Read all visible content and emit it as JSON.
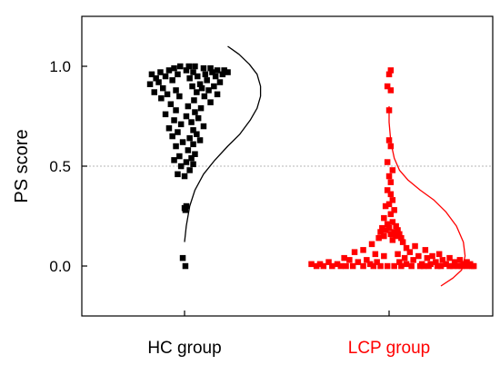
{
  "chart_data": {
    "type": "scatter",
    "title": "",
    "xlabel": "",
    "ylabel": "PS score",
    "ylim": [
      -0.25,
      1.25
    ],
    "yticks": [
      0.0,
      0.5,
      1.0
    ],
    "ytick_labels": [
      "0.0",
      "0.5",
      "1.0"
    ],
    "reference_line": 0.5,
    "grid": false,
    "legend": "none",
    "categories": [
      "HC group",
      "LCP group"
    ],
    "series": [
      {
        "color": "#000000",
        "marker": "square",
        "category": "HC group",
        "values": [
          1.0,
          1.0,
          1.0,
          0.99,
          0.99,
          0.99,
          0.98,
          0.98,
          0.98,
          0.98,
          0.97,
          0.97,
          0.97,
          0.97,
          0.96,
          0.96,
          0.96,
          0.96,
          0.95,
          0.95,
          0.95,
          0.94,
          0.94,
          0.93,
          0.93,
          0.92,
          0.92,
          0.91,
          0.91,
          0.9,
          0.9,
          0.89,
          0.89,
          0.88,
          0.88,
          0.87,
          0.87,
          0.86,
          0.86,
          0.85,
          0.85,
          0.84,
          0.83,
          0.82,
          0.81,
          0.8,
          0.79,
          0.78,
          0.77,
          0.76,
          0.75,
          0.74,
          0.73,
          0.72,
          0.71,
          0.7,
          0.69,
          0.68,
          0.67,
          0.66,
          0.65,
          0.64,
          0.63,
          0.62,
          0.61,
          0.6,
          0.58,
          0.56,
          0.55,
          0.54,
          0.53,
          0.52,
          0.51,
          0.5,
          0.48,
          0.46,
          0.45,
          0.3,
          0.29,
          0.28,
          0.04,
          0.0
        ],
        "offsets": [
          0.05,
          -0.05,
          0.12,
          0.22,
          -0.12,
          0.3,
          0.02,
          0.38,
          -0.18,
          0.46,
          -0.28,
          0.1,
          0.5,
          0.32,
          -0.38,
          0.24,
          -0.08,
          0.44,
          -0.22,
          0.15,
          0.36,
          -0.33,
          0.06,
          0.26,
          -0.14,
          0.41,
          -0.3,
          0.18,
          -0.4,
          0.09,
          0.34,
          -0.25,
          0.2,
          -0.1,
          0.28,
          -0.35,
          0.14,
          -0.2,
          0.38,
          -0.06,
          0.23,
          -0.27,
          0.11,
          0.3,
          -0.16,
          0.04,
          0.19,
          -0.1,
          0.12,
          -0.22,
          0.02,
          0.16,
          -0.12,
          0.08,
          -0.04,
          0.22,
          -0.18,
          0.1,
          -0.08,
          0.14,
          -0.14,
          0.06,
          0.18,
          -0.02,
          0.1,
          -0.1,
          0.04,
          0.12,
          -0.06,
          0.08,
          -0.12,
          0.02,
          0.1,
          -0.04,
          0.06,
          -0.08,
          0.0,
          0.02,
          0.0,
          0.01,
          -0.02,
          0.01
        ]
      },
      {
        "color": "#ff0000",
        "marker": "square",
        "category": "LCP group",
        "values": [
          0.98,
          0.96,
          0.9,
          0.88,
          0.78,
          0.63,
          0.6,
          0.52,
          0.48,
          0.45,
          0.42,
          0.38,
          0.36,
          0.33,
          0.31,
          0.3,
          0.28,
          0.26,
          0.24,
          0.22,
          0.21,
          0.2,
          0.19,
          0.19,
          0.18,
          0.18,
          0.17,
          0.17,
          0.16,
          0.16,
          0.15,
          0.15,
          0.14,
          0.14,
          0.13,
          0.12,
          0.11,
          0.1,
          0.09,
          0.08,
          0.08,
          0.07,
          0.07,
          0.06,
          0.06,
          0.06,
          0.05,
          0.05,
          0.05,
          0.04,
          0.04,
          0.04,
          0.04,
          0.03,
          0.03,
          0.03,
          0.03,
          0.03,
          0.02,
          0.02,
          0.02,
          0.02,
          0.02,
          0.02,
          0.02,
          0.01,
          0.01,
          0.01,
          0.01,
          0.01,
          0.01,
          0.01,
          0.01,
          0.01,
          0.01,
          0.0,
          0.0,
          0.0,
          0.0,
          0.0,
          0.0,
          0.0,
          0.0,
          0.0,
          0.0,
          0.0,
          0.0,
          0.0,
          0.0,
          0.0,
          0.0,
          0.0,
          0.0,
          0.0,
          0.0,
          0.0,
          0.0,
          0.0,
          0.0,
          0.0
        ],
        "offsets": [
          0.02,
          0.0,
          -0.02,
          0.02,
          0.0,
          0.0,
          0.02,
          -0.02,
          0.04,
          0.0,
          0.02,
          -0.02,
          0.02,
          0.04,
          0.0,
          -0.04,
          0.06,
          0.02,
          -0.06,
          0.04,
          -0.02,
          0.08,
          -0.08,
          0.0,
          0.1,
          -0.04,
          0.06,
          -0.1,
          0.12,
          0.02,
          -0.06,
          0.08,
          0.14,
          -0.12,
          0.04,
          0.16,
          -0.2,
          0.3,
          0.2,
          -0.3,
          0.42,
          0.24,
          -0.4,
          0.58,
          0.1,
          -0.16,
          0.5,
          0.34,
          -0.06,
          0.7,
          -0.52,
          0.18,
          0.44,
          -0.26,
          0.82,
          0.28,
          -0.46,
          0.62,
          -0.7,
          0.12,
          0.9,
          -0.36,
          0.54,
          -0.14,
          0.76,
          0.38,
          -0.6,
          0.94,
          -0.22,
          0.66,
          -0.8,
          0.48,
          0.2,
          -0.9,
          0.86,
          -0.1,
          0.56,
          -0.3,
          0.74,
          -0.5,
          0.36,
          0.98,
          -0.66,
          0.6,
          -0.02,
          0.8,
          -0.42,
          0.26,
          0.96,
          -0.76,
          0.46,
          -0.18,
          0.9,
          0.14,
          -0.56,
          0.7,
          0.4,
          -0.84,
          0.84,
          0.06
        ]
      }
    ],
    "curves": [
      {
        "color": "#000000",
        "category": "HC group",
        "points": [
          [
            0.0,
            0.12
          ],
          [
            0.02,
            0.2
          ],
          [
            0.06,
            0.3
          ],
          [
            0.12,
            0.38
          ],
          [
            0.22,
            0.46
          ],
          [
            0.35,
            0.53
          ],
          [
            0.5,
            0.6
          ],
          [
            0.64,
            0.66
          ],
          [
            0.76,
            0.73
          ],
          [
            0.84,
            0.79
          ],
          [
            0.88,
            0.85
          ],
          [
            0.88,
            0.9
          ],
          [
            0.84,
            0.96
          ],
          [
            0.75,
            1.01
          ],
          [
            0.63,
            1.06
          ],
          [
            0.5,
            1.1
          ]
        ]
      },
      {
        "color": "#ff0000",
        "category": "LCP group",
        "points": [
          [
            0.0,
            0.8
          ],
          [
            0.0,
            0.72
          ],
          [
            0.02,
            0.62
          ],
          [
            0.06,
            0.54
          ],
          [
            0.12,
            0.48
          ],
          [
            0.22,
            0.43
          ],
          [
            0.36,
            0.38
          ],
          [
            0.52,
            0.33
          ],
          [
            0.66,
            0.27
          ],
          [
            0.78,
            0.2
          ],
          [
            0.86,
            0.12
          ],
          [
            0.88,
            0.05
          ],
          [
            0.84,
            -0.02
          ],
          [
            0.74,
            -0.06
          ],
          [
            0.6,
            -0.1
          ]
        ]
      }
    ]
  }
}
